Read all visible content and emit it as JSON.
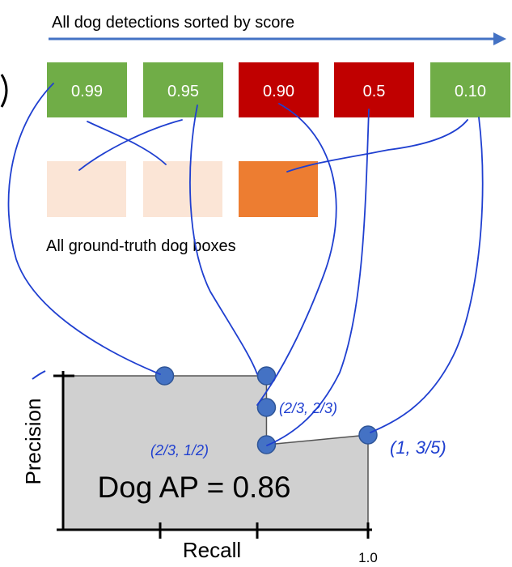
{
  "header": {
    "title": "All dog detections sorted by score"
  },
  "colors": {
    "arrow": "#4472c4",
    "correct_detection": "#70ad47",
    "wrong_detection": "#c00000",
    "gt_box_matched": "#fbe5d6",
    "gt_box_unmatched": "#ed7d31",
    "connector_ink": "#1f3fd0",
    "point_fill": "#4472c4",
    "area_fill": "#d0d0d0"
  },
  "detections": [
    {
      "score": "0.99",
      "status": "correct"
    },
    {
      "score": "0.95",
      "status": "correct"
    },
    {
      "score": "0.90",
      "status": "wrong"
    },
    {
      "score": "0.5",
      "status": "wrong"
    },
    {
      "score": "0.10",
      "status": "correct"
    }
  ],
  "ground_truth": {
    "caption": "All ground-truth dog boxes",
    "boxes": [
      {
        "status": "matched"
      },
      {
        "status": "matched"
      },
      {
        "status": "matched_late"
      }
    ]
  },
  "plot": {
    "ylabel": "Precision",
    "xlabel": "Recall",
    "x_tick_label": "1.0",
    "ap_label": "Dog AP = 0.86",
    "annotations": {
      "a": "(2/3, 2/3)",
      "b": "(2/3, 1/2)",
      "c": "(1, 3/5)"
    }
  },
  "chart_data": {
    "type": "line",
    "title": "",
    "xlabel": "Recall",
    "ylabel": "Precision",
    "series": [
      {
        "x": [
          0.333,
          0.667,
          0.667,
          0.667,
          1.0
        ],
        "y": [
          1.0,
          1.0,
          0.667,
          0.5,
          0.6
        ]
      }
    ]
  }
}
